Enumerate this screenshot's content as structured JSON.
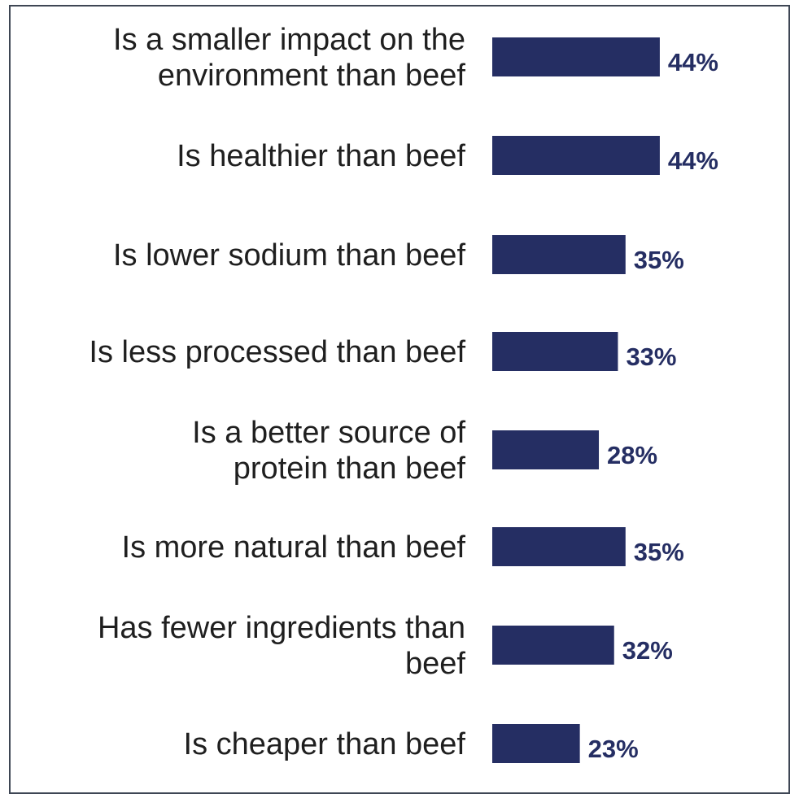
{
  "chart_data": {
    "type": "bar",
    "orientation": "horizontal",
    "categories": [
      [
        "Is a smaller impact on the",
        "environment than beef"
      ],
      [
        "Is healthier than beef"
      ],
      [
        "Is lower sodium than beef"
      ],
      [
        "Is less processed than beef"
      ],
      [
        "Is a better source of",
        "protein than beef"
      ],
      [
        "Is more natural than beef"
      ],
      [
        "Has fewer ingredients than",
        "beef"
      ],
      [
        "Is cheaper than beef"
      ]
    ],
    "values": [
      44,
      44,
      35,
      33,
      28,
      35,
      32,
      23
    ],
    "value_labels": [
      "44%",
      "44%",
      "35%",
      "33%",
      "28%",
      "35%",
      "32%",
      "23%"
    ],
    "unit": "%",
    "title": "",
    "xlabel": "",
    "ylabel": "",
    "grid": false,
    "legend": "none",
    "bar_color": "#252e63",
    "label_color": "#252e63",
    "border_color": "#3e4654"
  }
}
